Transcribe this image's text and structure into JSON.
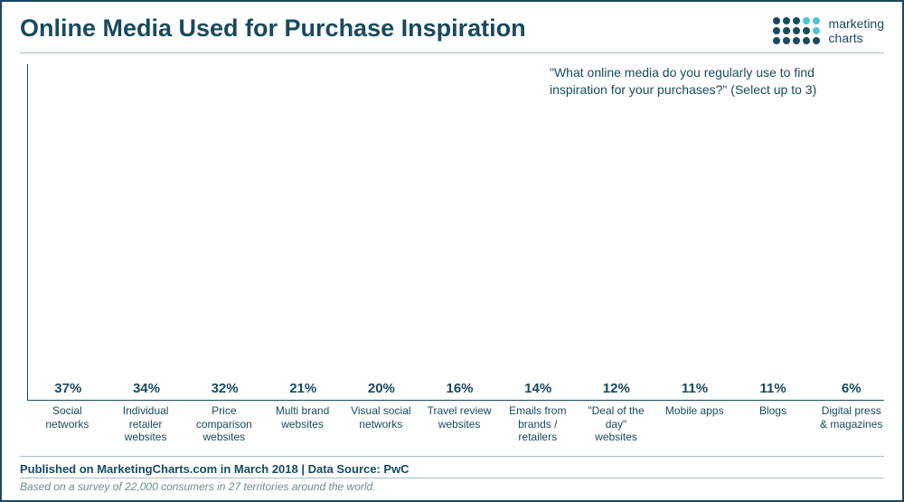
{
  "title": "Online Media Used for Purchase Inspiration",
  "logo": {
    "line1": "marketing",
    "line2": "charts"
  },
  "question": "\"What online media do you regularly use to find inspiration for your purchases?\" (Select up to 3)",
  "chart": {
    "type": "bar",
    "bar_color": "#184a5e",
    "text_color": "#184a5e",
    "value_fontsize": 15,
    "label_fontsize": 12,
    "ymax": 38,
    "categories": [
      "Social networks",
      "Individual retailer websites",
      "Price comparison websites",
      "Multi brand websites",
      "Visual social networks",
      "Travel review websites",
      "Emails from brands / retailers",
      "\"Deal of the day\" websites",
      "Mobile apps",
      "Blogs",
      "Digital press & magazines"
    ],
    "values": [
      37,
      34,
      32,
      21,
      20,
      16,
      14,
      12,
      11,
      11,
      6
    ],
    "value_labels": [
      "37%",
      "34%",
      "32%",
      "21%",
      "20%",
      "16%",
      "14%",
      "12%",
      "11%",
      "11%",
      "6%"
    ]
  },
  "published": "Published on MarketingCharts.com in March 2018 | Data Source: PwC",
  "note": "Based on a survey of 22,000 consumers in 27 territories around the world."
}
